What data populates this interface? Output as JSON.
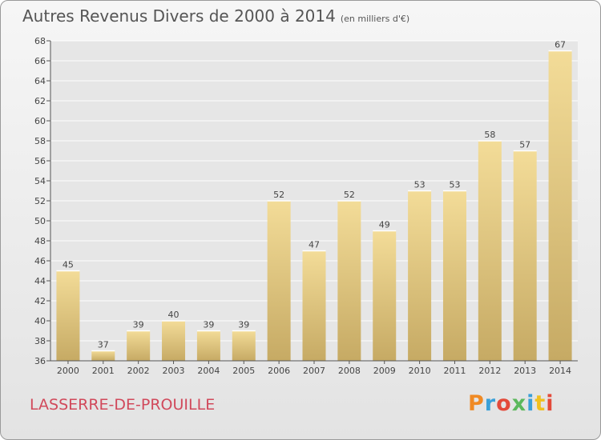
{
  "title": "Autres Revenus Divers de 2000 à 2014",
  "unit_note": "(en milliers d'€)",
  "location": "LASSERRE-DE-PROUILLE",
  "brand": "Proxiti",
  "colors": {
    "bar_light": "#f3dc98",
    "bar_dark": "#c6aa64",
    "axis": "#555555",
    "grid": "#ffffff",
    "location": "#d1495b"
  },
  "chart_data": {
    "type": "bar",
    "categories": [
      "2000",
      "2001",
      "2002",
      "2003",
      "2004",
      "2005",
      "2006",
      "2007",
      "2008",
      "2009",
      "2010",
      "2011",
      "2012",
      "2013",
      "2014"
    ],
    "values": [
      45,
      37,
      39,
      40,
      39,
      39,
      52,
      47,
      52,
      49,
      53,
      53,
      58,
      57,
      67
    ],
    "ylim": [
      36,
      68
    ],
    "yticks": [
      36,
      38,
      40,
      42,
      44,
      46,
      48,
      50,
      52,
      54,
      56,
      58,
      60,
      62,
      64,
      66,
      68
    ],
    "grid": true,
    "data_labels": true
  }
}
